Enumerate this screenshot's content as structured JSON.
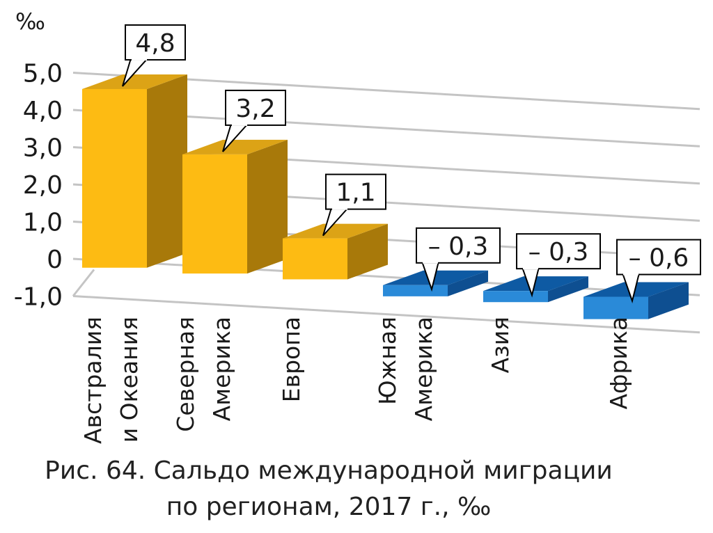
{
  "chart_data": {
    "type": "bar",
    "unit_label": "‰",
    "categories": [
      [
        "Австралия",
        "и Океания"
      ],
      [
        "Северная",
        "Америка"
      ],
      [
        "Европа"
      ],
      [
        "Южная",
        "Америка"
      ],
      [
        "Азия"
      ],
      [
        "Африка"
      ]
    ],
    "values": [
      4.8,
      3.2,
      1.1,
      -0.3,
      -0.3,
      -0.6
    ],
    "data_labels": [
      "4,8",
      "3,2",
      "1,1",
      "– 0,3",
      "– 0,3",
      "– 0,6"
    ],
    "y_ticks": [
      5.0,
      4.0,
      3.0,
      2.0,
      1.0,
      0,
      -1.0
    ],
    "y_tick_labels": [
      "5,0",
      "4,0",
      "3,0",
      "2,0",
      "1,0",
      "0",
      "-1,0"
    ],
    "ylim": [
      -1.0,
      5.0
    ],
    "grid": true,
    "colors": {
      "positive_front": "#FDBB13",
      "positive_side": "#A8790A",
      "positive_top": "#DCA316",
      "negative_front": "#2A8AD8",
      "negative_side": "#0E4F91",
      "negative_top": "#0E5AA3"
    }
  },
  "caption": {
    "line1": "Рис. 64. Сальдо международной миграции",
    "line2": "по регионам, 2017 г., ‰"
  }
}
